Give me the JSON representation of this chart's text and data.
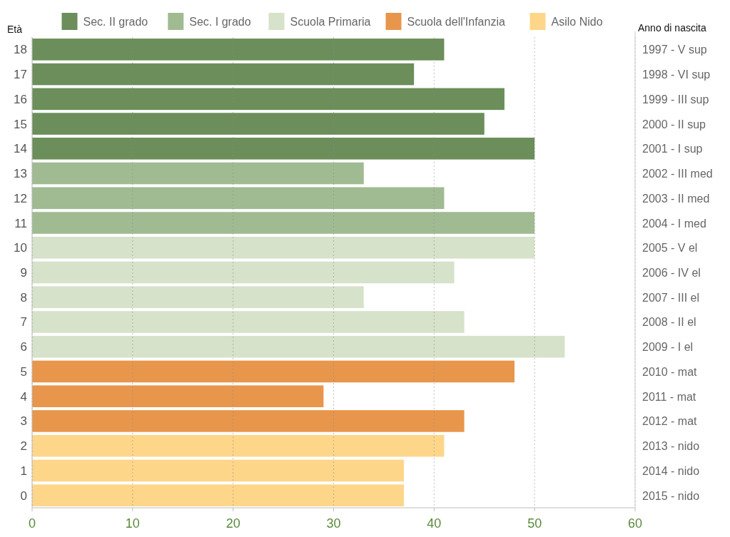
{
  "chart_data": {
    "type": "bar",
    "orientation": "horizontal",
    "stacked": true,
    "ylabel": "Età",
    "y2label": "Anno di nascita",
    "categories": [
      "18",
      "17",
      "16",
      "15",
      "14",
      "13",
      "12",
      "11",
      "10",
      "9",
      "8",
      "7",
      "6",
      "5",
      "4",
      "3",
      "2",
      "1",
      "0"
    ],
    "y2_categories": [
      "1997 - V sup",
      "1998 - VI sup",
      "1999 - III sup",
      "2000 - II sup",
      "2001 - I sup",
      "2002 - III med",
      "2003 - II med",
      "2004 - I med",
      "2005 - V el",
      "2006 - IV el",
      "2007 - III el",
      "2008 - II el",
      "2009 - I el",
      "2010 - mat",
      "2011 - mat",
      "2012 - mat",
      "2013 - nido",
      "2014 - nido",
      "2015 - nido"
    ],
    "series": [
      {
        "name": "Sec. II grado",
        "color": "#6b8e5a",
        "values": [
          41,
          38,
          47,
          45,
          50,
          null,
          null,
          null,
          null,
          null,
          null,
          null,
          null,
          null,
          null,
          null,
          null,
          null,
          null
        ]
      },
      {
        "name": "Sec. I grado",
        "color": "#a0bb91",
        "values": [
          null,
          null,
          null,
          null,
          null,
          33,
          41,
          50,
          null,
          null,
          null,
          null,
          null,
          null,
          null,
          null,
          null,
          null,
          null
        ]
      },
      {
        "name": "Scuola Primaria",
        "color": "#d6e2c9",
        "values": [
          null,
          null,
          null,
          null,
          null,
          null,
          null,
          null,
          50,
          42,
          33,
          43,
          53,
          null,
          null,
          null,
          null,
          null,
          null
        ]
      },
      {
        "name": "Scuola dell'Infanzia",
        "color": "#e8964c",
        "values": [
          null,
          null,
          null,
          null,
          null,
          null,
          null,
          null,
          null,
          null,
          null,
          null,
          null,
          48,
          29,
          43,
          null,
          null,
          null
        ]
      },
      {
        "name": "Asilo Nido",
        "color": "#fdd68a",
        "values": [
          null,
          null,
          null,
          null,
          null,
          null,
          null,
          null,
          null,
          null,
          null,
          null,
          null,
          null,
          null,
          null,
          41,
          37,
          37
        ]
      }
    ],
    "xlim": [
      0,
      60
    ],
    "xticks": [
      0,
      10,
      20,
      30,
      40,
      50,
      60
    ],
    "grid": "x",
    "legend": "top"
  }
}
